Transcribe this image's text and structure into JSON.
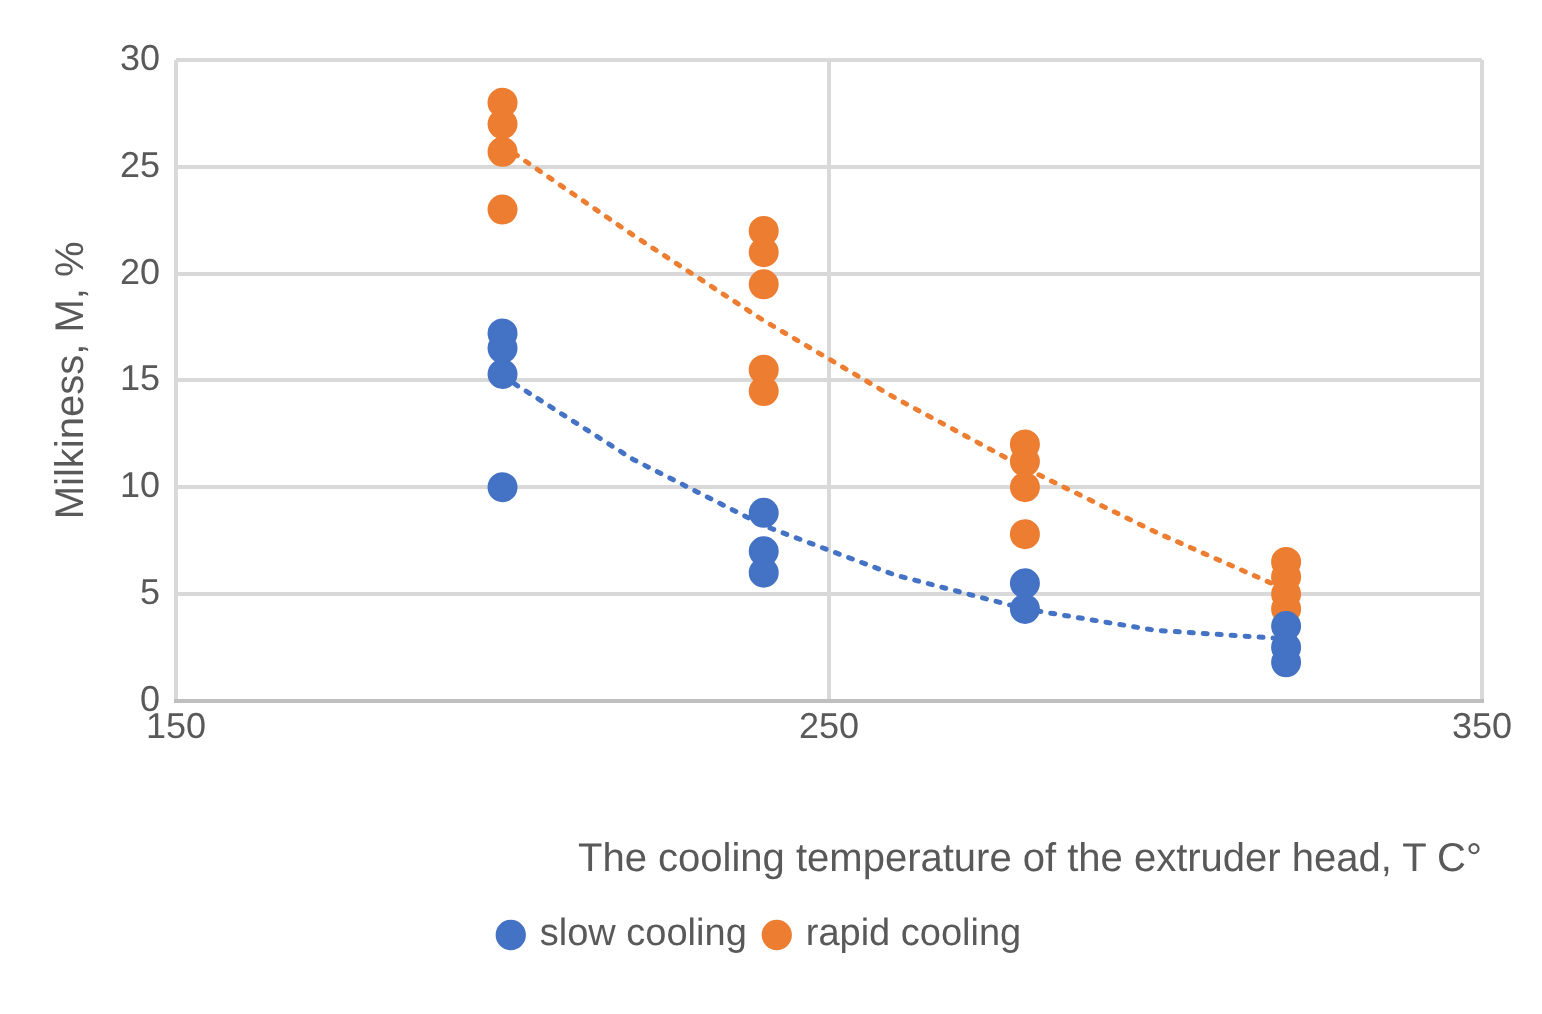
{
  "chart_data": {
    "type": "scatter",
    "xlabel": "The cooling temperature of the extruder head, T C°",
    "ylabel": "Milkiness, M, %",
    "xlim": [
      150,
      350
    ],
    "xticks": [
      150,
      250,
      350
    ],
    "ylim": [
      0,
      30
    ],
    "yticks": [
      0,
      5,
      10,
      15,
      20,
      25,
      30
    ],
    "grid": true,
    "legend": "bottom",
    "marker": "circle",
    "series": [
      {
        "name": "slow cooling",
        "color": "#4472c4",
        "x": [
          200,
          200,
          200,
          200,
          240,
          240,
          240,
          280,
          280,
          320,
          320,
          320
        ],
        "values": [
          17.2,
          16.5,
          15.3,
          10,
          8.8,
          7,
          6,
          5.5,
          4.3,
          3.5,
          2.5,
          1.8
        ]
      },
      {
        "name": "rapid cooling",
        "color": "#ed7d31",
        "x": [
          200,
          200,
          200,
          200,
          240,
          240,
          240,
          240,
          240,
          280,
          280,
          280,
          280,
          320,
          320,
          320,
          320
        ],
        "values": [
          28,
          27,
          25.7,
          23,
          22,
          21,
          19.5,
          15.5,
          14.5,
          12,
          11.2,
          10,
          7.8,
          6.5,
          5.8,
          5,
          4.3
        ]
      },
      {
        "type": "line",
        "color": "#4472c4",
        "line_style": "dotted",
        "marker": "none",
        "x": [
          200,
          220,
          240,
          260,
          280,
          300,
          320
        ],
        "values": [
          15.2,
          11.3,
          8.2,
          5.9,
          4.3,
          3.3,
          2.9
        ]
      },
      {
        "type": "line",
        "color": "#ed7d31",
        "line_style": "dotted",
        "marker": "none",
        "x": [
          200,
          220,
          240,
          260,
          280,
          300,
          320
        ],
        "values": [
          26,
          21.8,
          17.8,
          14.2,
          10.9,
          7.9,
          5.2
        ]
      }
    ]
  }
}
